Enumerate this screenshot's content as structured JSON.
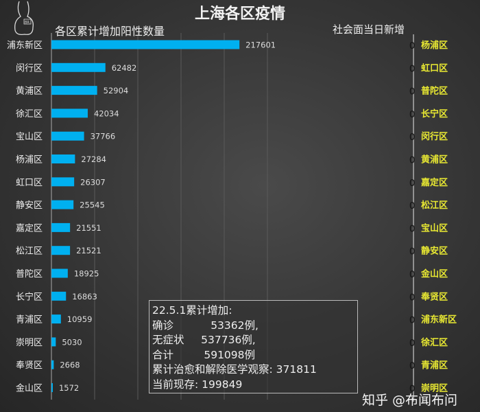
{
  "chart_data": [
    {
      "type": "bar",
      "orientation": "horizontal",
      "title": "上海各区疫情",
      "subtitle": "各区累计增加阳性数量",
      "categories": [
        "浦东新区",
        "闵行区",
        "黄浦区",
        "徐汇区",
        "宝山区",
        "杨浦区",
        "虹口区",
        "静安区",
        "嘉定区",
        "松江区",
        "普陀区",
        "长宁区",
        "青浦区",
        "崇明区",
        "奉贤区",
        "金山区"
      ],
      "values": [
        217601,
        62482,
        52904,
        42034,
        37766,
        27284,
        26307,
        25545,
        21551,
        21521,
        18925,
        16863,
        10959,
        5030,
        2668,
        1572
      ],
      "xlim": [
        0,
        250000
      ],
      "grid": true,
      "color": "#00b0f0"
    },
    {
      "type": "bar",
      "orientation": "horizontal",
      "subtitle": "社会面当日新增",
      "categories": [
        "杨浦区",
        "虹口区",
        "普陀区",
        "长宁区",
        "闵行区",
        "黄浦区",
        "嘉定区",
        "松江区",
        "宝山区",
        "静安区",
        "金山区",
        "奉贤区",
        "浦东新区",
        "徐汇区",
        "青浦区",
        "崇明区"
      ],
      "values": [
        0,
        0,
        0,
        0,
        0,
        0,
        0,
        0,
        0,
        0,
        0,
        0,
        0,
        0,
        0,
        0
      ],
      "label_color": "#e8e832"
    }
  ],
  "summary": {
    "lines": [
      "22.5.1累计增加:",
      "确诊           53362例,",
      "无症状     537736例,",
      "合计         591098例",
      "累计治愈和解除医学观察: 371811",
      "当前现存: 199849"
    ]
  },
  "watermark": "知乎 @布闻布问",
  "logo": {
    "text": "BR"
  }
}
